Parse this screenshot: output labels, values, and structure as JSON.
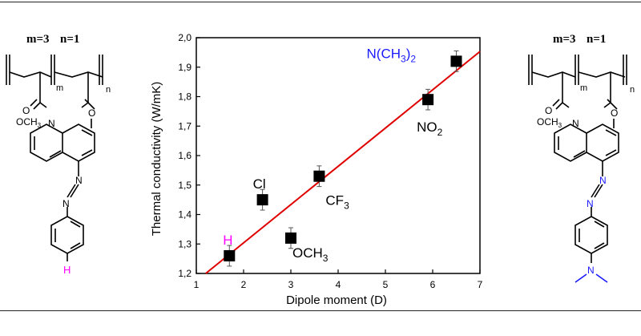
{
  "chart_data": {
    "type": "scatter",
    "xlabel": "Dipole moment  (D)",
    "ylabel": "Thermal conductivity (W/mK)",
    "xlim": [
      1,
      7
    ],
    "ylim": [
      1.2,
      2.0
    ],
    "x_ticks": [
      "1",
      "2",
      "3",
      "4",
      "5",
      "6",
      "7"
    ],
    "y_ticks": [
      "1,2",
      "1,3",
      "1,4",
      "1,5",
      "1,6",
      "1,7",
      "1,8",
      "1,9",
      "2,0"
    ],
    "points": [
      {
        "label": "H",
        "x": 1.7,
        "y": 1.26,
        "err": 0.035
      },
      {
        "label": "Cl",
        "x": 2.4,
        "y": 1.45,
        "err": 0.035
      },
      {
        "label": "OCH",
        "x": 3.0,
        "y": 1.32,
        "err": 0.035
      },
      {
        "label": "CF",
        "x": 3.6,
        "y": 1.53,
        "err": 0.035
      },
      {
        "label": "NO",
        "x": 5.9,
        "y": 1.79,
        "err": 0.035
      },
      {
        "label": "N(CH",
        "x": 6.5,
        "y": 1.92,
        "err": 0.035
      }
    ],
    "fit_line": {
      "x": [
        1.2,
        7.0
      ],
      "y": [
        1.2,
        1.953
      ]
    },
    "colors": {
      "marker": "#000000",
      "fit": "#e00000",
      "h_label": "#ff00ff",
      "n_label": "#1a1aff"
    }
  },
  "labels": {
    "h": "H",
    "cl": "Cl",
    "och": "OCH",
    "och_sub": "3",
    "cf": "CF",
    "cf_sub": "3",
    "no": "NO",
    "no_sub": "2",
    "nme": "N(CH",
    "nme_sub1": "3",
    "nme_close": ")",
    "nme_sub2": "2"
  },
  "left_structure": {
    "header_m": "m=3",
    "header_n": "n=1",
    "sub_m": "m",
    "sub_n": "n",
    "ester_o": "O",
    "methoxy": "OCH",
    "methoxy_sub": "3",
    "link_o": "O",
    "ring_n": "N",
    "azo_n1": "N",
    "azo_n2": "N",
    "terminal": "H"
  },
  "right_structure": {
    "header_m": "m=3",
    "header_n": "n=1",
    "sub_m": "m",
    "sub_n": "n",
    "ester_o": "O",
    "methoxy": "OCH",
    "methoxy_sub": "3",
    "link_o": "O",
    "ring_n": "N",
    "azo_n1": "N",
    "azo_n2": "N",
    "terminal": "N"
  }
}
